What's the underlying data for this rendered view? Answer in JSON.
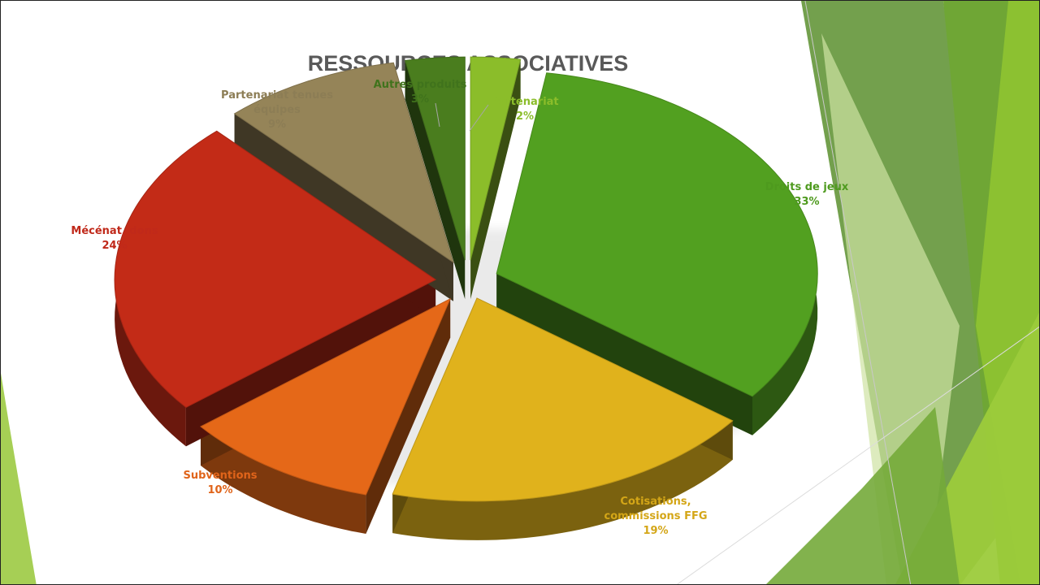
{
  "chart_data": {
    "type": "pie",
    "title": "RESSOURCES ASSOCIATIVES",
    "slices": [
      {
        "label_lines": [
          "Partenariat"
        ],
        "pct_label": "2%",
        "value": 2.5,
        "color": "#8bbd2a",
        "label_color": "#8bbd2a"
      },
      {
        "label_lines": [
          "Droits de jeux"
        ],
        "pct_label": "33%",
        "value": 33,
        "color": "#52a020",
        "label_color": "#4e9a1e"
      },
      {
        "label_lines": [
          "Cotisations,",
          "commissions FFG"
        ],
        "pct_label": "19%",
        "value": 19,
        "color": "#e0b21c",
        "label_color": "#d4a617"
      },
      {
        "label_lines": [
          "Subventions"
        ],
        "pct_label": "10%",
        "value": 10,
        "color": "#e56818",
        "label_color": "#e0641a"
      },
      {
        "label_lines": [
          "Mécénat, dons"
        ],
        "pct_label": "24%",
        "value": 24,
        "color": "#c32b17",
        "label_color": "#c0291a"
      },
      {
        "label_lines": [
          "Partenariat tenues",
          "équipes"
        ],
        "pct_label": "9%",
        "value": 9,
        "color": "#958458",
        "label_color": "#8c7d55"
      },
      {
        "label_lines": [
          "Autres produits"
        ],
        "pct_label": "3%",
        "value": 3,
        "color": "#4a7d1e",
        "label_color": "#40731c"
      }
    ],
    "legend": "none",
    "data_labels": "category and percentage"
  },
  "theme": {
    "accent_light": "#9bc53d",
    "accent_mid": "#6aa331",
    "accent_dark": "#4c7f26"
  }
}
